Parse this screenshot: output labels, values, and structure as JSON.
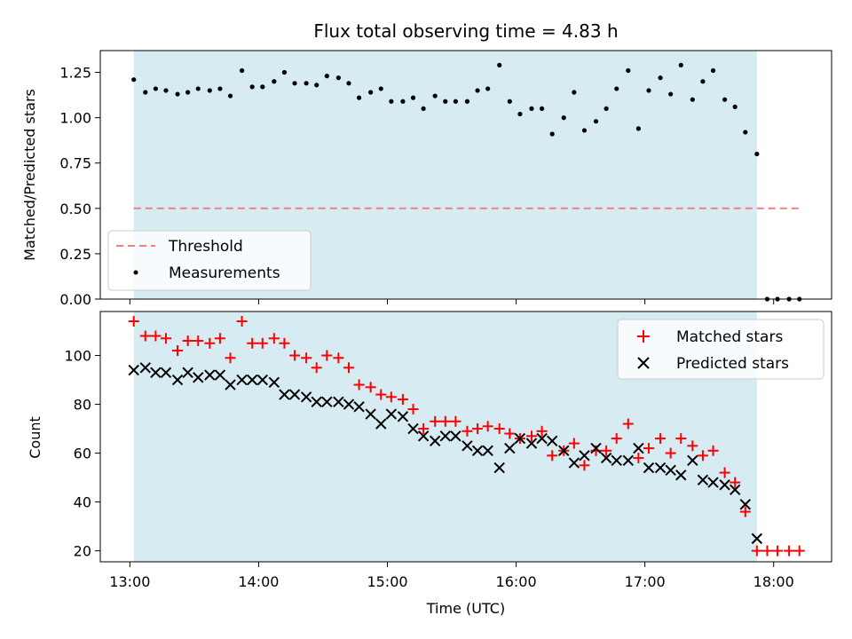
{
  "chart_data": [
    {
      "type": "scatter",
      "title": "Flux total observing time = 4.83 h",
      "xlabel": "",
      "ylabel": "Matched/Predicted stars",
      "ylim": [
        0,
        1.37
      ],
      "yticks": [
        0,
        0.25,
        0.5,
        0.75,
        1.0,
        1.25
      ],
      "ytick_labels": [
        "0.00",
        "0.25",
        "0.50",
        "0.75",
        "1.00",
        "1.25"
      ],
      "xlim_hours": [
        12.77,
        18.45
      ],
      "shaded_span_hours": [
        13.03,
        17.87
      ],
      "legend_placement": "lower-left",
      "threshold": {
        "name": "Threshold",
        "value": 0.5,
        "x_range_hours": [
          13.03,
          18.2
        ],
        "color": "#f08080"
      },
      "series": [
        {
          "name": "Measurements",
          "color": "#000000",
          "x_hours": [
            13.03,
            13.12,
            13.2,
            13.28,
            13.37,
            13.45,
            13.53,
            13.62,
            13.7,
            13.78,
            13.87,
            13.95,
            14.03,
            14.12,
            14.2,
            14.28,
            14.37,
            14.45,
            14.53,
            14.62,
            14.7,
            14.78,
            14.87,
            14.95,
            15.03,
            15.12,
            15.2,
            15.28,
            15.37,
            15.45,
            15.53,
            15.62,
            15.7,
            15.78,
            15.87,
            15.95,
            16.03,
            16.12,
            16.2,
            16.28,
            16.37,
            16.45,
            16.53,
            16.62,
            16.7,
            16.78,
            16.87,
            16.95,
            17.03,
            17.12,
            17.2,
            17.28,
            17.37,
            17.45,
            17.53,
            17.62,
            17.7,
            17.78,
            17.87,
            17.95,
            18.03,
            18.12,
            18.2
          ],
          "y": [
            1.21,
            1.14,
            1.16,
            1.15,
            1.13,
            1.14,
            1.16,
            1.15,
            1.16,
            1.12,
            1.26,
            1.17,
            1.17,
            1.2,
            1.25,
            1.19,
            1.19,
            1.18,
            1.23,
            1.22,
            1.19,
            1.11,
            1.14,
            1.16,
            1.09,
            1.09,
            1.11,
            1.05,
            1.12,
            1.09,
            1.09,
            1.09,
            1.15,
            1.16,
            1.29,
            1.09,
            1.02,
            1.05,
            1.05,
            0.91,
            1.0,
            1.14,
            0.93,
            0.98,
            1.05,
            1.16,
            1.26,
            0.94,
            1.15,
            1.22,
            1.13,
            1.29,
            1.1,
            1.2,
            1.26,
            1.1,
            1.06,
            0.92,
            0.8,
            0.0,
            0.0,
            0.0,
            0.0
          ]
        }
      ]
    },
    {
      "type": "scatter",
      "title": "",
      "xlabel": "Time (UTC)",
      "ylabel": "Count",
      "ylim": [
        15.5,
        118
      ],
      "yticks": [
        20,
        40,
        60,
        80,
        100
      ],
      "ytick_labels": [
        "20",
        "40",
        "60",
        "80",
        "100"
      ],
      "xlim_hours": [
        12.77,
        18.45
      ],
      "xticks_hours": [
        13,
        14,
        15,
        16,
        17,
        18
      ],
      "xtick_labels": [
        "13:00",
        "14:00",
        "15:00",
        "16:00",
        "17:00",
        "18:00"
      ],
      "shaded_span_hours": [
        13.03,
        17.87
      ],
      "legend_placement": "upper-right",
      "series": [
        {
          "name": "Matched stars",
          "color": "#ff0000",
          "marker": "plus",
          "x_hours": [
            13.03,
            13.12,
            13.2,
            13.28,
            13.37,
            13.45,
            13.53,
            13.62,
            13.7,
            13.78,
            13.87,
            13.95,
            14.03,
            14.12,
            14.2,
            14.28,
            14.37,
            14.45,
            14.53,
            14.62,
            14.7,
            14.78,
            14.87,
            14.95,
            15.03,
            15.12,
            15.2,
            15.28,
            15.37,
            15.45,
            15.53,
            15.62,
            15.7,
            15.78,
            15.87,
            15.95,
            16.03,
            16.12,
            16.2,
            16.28,
            16.37,
            16.45,
            16.53,
            16.62,
            16.7,
            16.78,
            16.87,
            16.95,
            17.03,
            17.12,
            17.2,
            17.28,
            17.37,
            17.45,
            17.53,
            17.62,
            17.7,
            17.78,
            17.87,
            17.95,
            18.03,
            18.12,
            18.2
          ],
          "y": [
            114,
            108,
            108,
            107,
            102,
            106,
            106,
            105,
            107,
            99,
            114,
            105,
            105,
            107,
            105,
            100,
            99,
            95,
            100,
            99,
            95,
            88,
            87,
            84,
            83,
            82,
            78,
            70,
            73,
            73,
            73,
            69,
            70,
            71,
            70,
            68,
            66,
            67,
            69,
            59,
            61,
            64,
            55,
            61,
            61,
            66,
            72,
            58,
            62,
            66,
            60,
            66,
            63,
            59,
            61,
            52,
            48,
            36,
            20,
            20,
            20,
            20,
            20
          ]
        },
        {
          "name": "Predicted stars",
          "color": "#000000",
          "marker": "x",
          "x_hours": [
            13.03,
            13.12,
            13.2,
            13.28,
            13.37,
            13.45,
            13.53,
            13.62,
            13.7,
            13.78,
            13.87,
            13.95,
            14.03,
            14.12,
            14.2,
            14.28,
            14.37,
            14.45,
            14.53,
            14.62,
            14.7,
            14.78,
            14.87,
            14.95,
            15.03,
            15.12,
            15.2,
            15.28,
            15.37,
            15.45,
            15.53,
            15.62,
            15.7,
            15.78,
            15.87,
            15.95,
            16.03,
            16.12,
            16.2,
            16.28,
            16.37,
            16.45,
            16.53,
            16.62,
            16.7,
            16.78,
            16.87,
            16.95,
            17.03,
            17.12,
            17.2,
            17.28,
            17.37,
            17.45,
            17.53,
            17.62,
            17.7,
            17.78,
            17.87
          ],
          "y": [
            94,
            95,
            93,
            93,
            90,
            93,
            91,
            92,
            92,
            88,
            90,
            90,
            90,
            89,
            84,
            84,
            83,
            81,
            81,
            81,
            80,
            79,
            76,
            72,
            76,
            75,
            70,
            67,
            65,
            67,
            67,
            63,
            61,
            61,
            54,
            62,
            66,
            64,
            66,
            65,
            61,
            56,
            59,
            62,
            58,
            57,
            57,
            62,
            54,
            54,
            53,
            51,
            57,
            49,
            48,
            47,
            45,
            39,
            25
          ]
        }
      ]
    }
  ]
}
